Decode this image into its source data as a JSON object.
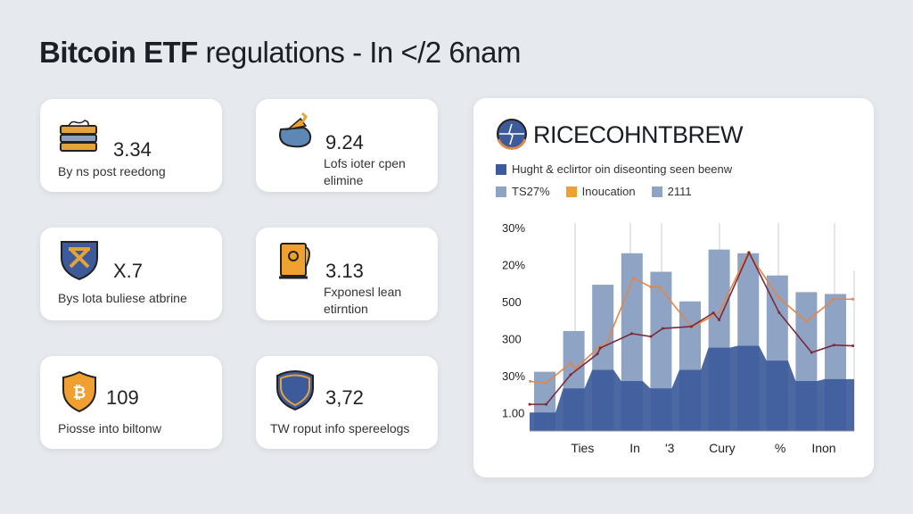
{
  "header": {
    "title_bold": "Bitcoin ETF",
    "title_rest": " regulations - In </2 6nam"
  },
  "cards": [
    {
      "value": "3.34",
      "label": "By ns post reedong",
      "icon": "stacked-books-icon"
    },
    {
      "value": "9.24",
      "label": "Lofs ioter cpen elimine",
      "icon": "money-bag-icon"
    },
    {
      "value": "X.7",
      "label": "Bys lota buliese atbrine",
      "icon": "crest-shield-icon"
    },
    {
      "value": "3.13",
      "label": "Fxponesl lean etirntion",
      "icon": "document-safe-icon"
    },
    {
      "value": "109",
      "label": "Piosse into biltonw",
      "icon": "bitcoin-shield-icon"
    },
    {
      "value": "3,72",
      "label": "TW roput info spereelogs",
      "icon": "badge-shield-icon"
    }
  ],
  "panel": {
    "brand": "RICECOHNTBREW",
    "brand_icon": "globe-logo-icon"
  },
  "colors": {
    "bar": "#8fa3c4",
    "area": "#3d5b9a",
    "orange": "#e0874a",
    "maroon": "#7a2a3a",
    "accent": "#f0a030"
  },
  "chart_data": {
    "type": "bar",
    "title": "Hught & eclirtor oin diseonting seen beenw",
    "legend": [
      {
        "label": "Hught & eclirtor oin diseonting seen beenw",
        "color": "#3d5b9a"
      },
      {
        "label": "TS27%",
        "color": "#8fa3c4"
      },
      {
        "label": "Inoucation",
        "color": "#f0a030"
      },
      {
        "label": "2111",
        "color": "#8fa3c4"
      }
    ],
    "ylim": [
      0,
      6.5
    ],
    "yticks": [
      {
        "v": 5.5,
        "label": "30%"
      },
      {
        "v": 4.5,
        "label": "20%"
      },
      {
        "v": 3.5,
        "label": "500"
      },
      {
        "v": 2.5,
        "label": "300"
      },
      {
        "v": 1.5,
        "label": "30%"
      },
      {
        "v": 0.5,
        "label": "1.00"
      }
    ],
    "xtick_labels": [
      {
        "i": 1.3,
        "label": "Ties"
      },
      {
        "i": 3.1,
        "label": "In"
      },
      {
        "i": 4.3,
        "label": "'3"
      },
      {
        "i": 6.1,
        "label": "Cury"
      },
      {
        "i": 8.1,
        "label": "%"
      },
      {
        "i": 9.6,
        "label": "Inon"
      }
    ],
    "bars": [
      1.6,
      2.7,
      3.95,
      4.8,
      4.3,
      3.5,
      4.9,
      4.8,
      4.2,
      3.75,
      3.7
    ],
    "area": [
      0.5,
      1.15,
      1.65,
      1.35,
      1.15,
      1.65,
      2.25,
      2.3,
      1.9,
      1.35,
      1.4
    ],
    "series": [
      {
        "name": "orange-line",
        "points": [
          [
            -0.5,
            1.34
          ],
          [
            0.05,
            1.3
          ],
          [
            0.9,
            1.84
          ],
          [
            1.05,
            1.68
          ],
          [
            1.9,
            2.29
          ],
          [
            2.1,
            2.32
          ],
          [
            3.05,
            4.13
          ],
          [
            3.65,
            3.89
          ],
          [
            3.95,
            3.89
          ],
          [
            5.05,
            2.8
          ],
          [
            6.0,
            3.2
          ],
          [
            7.0,
            4.82
          ],
          [
            8.05,
            3.6
          ],
          [
            9.0,
            2.96
          ],
          [
            9.95,
            3.56
          ],
          [
            10.6,
            3.56
          ]
        ]
      },
      {
        "name": "maroon-line",
        "points": [
          [
            -0.52,
            0.72
          ],
          [
            0.05,
            0.72
          ],
          [
            0.89,
            1.52
          ],
          [
            1.81,
            2.08
          ],
          [
            1.91,
            2.24
          ],
          [
            2.99,
            2.63
          ],
          [
            3.65,
            2.55
          ],
          [
            4.06,
            2.77
          ],
          [
            5.04,
            2.82
          ],
          [
            5.8,
            3.19
          ],
          [
            6.0,
            3.0
          ],
          [
            7.03,
            4.82
          ],
          [
            8.06,
            3.2
          ],
          [
            9.18,
            2.12
          ],
          [
            9.95,
            2.32
          ],
          [
            10.6,
            2.3
          ]
        ]
      }
    ]
  }
}
